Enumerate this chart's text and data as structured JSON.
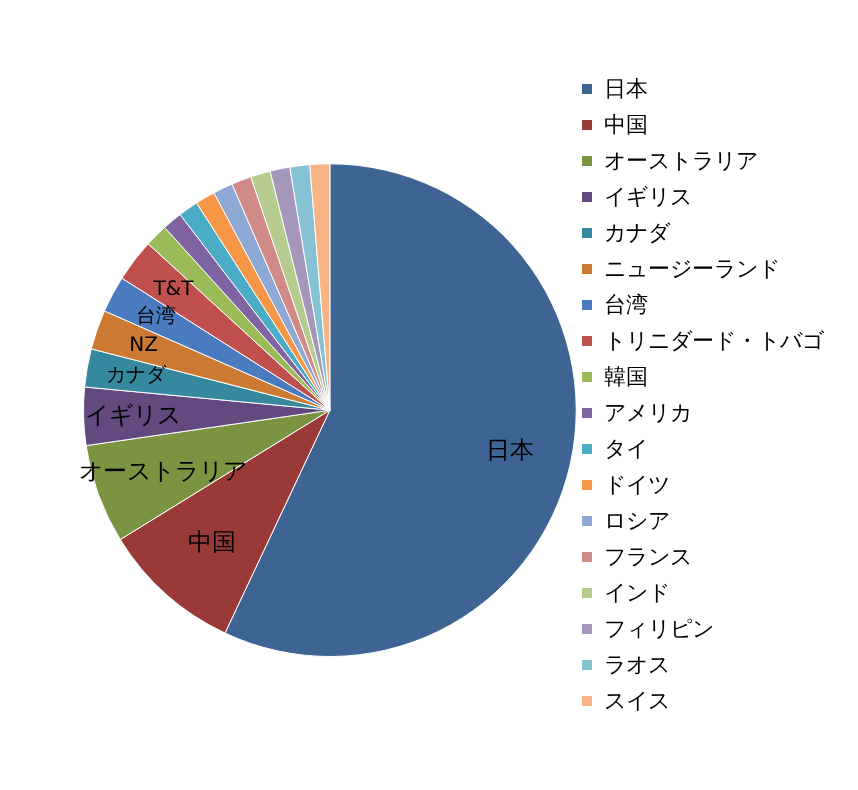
{
  "chart_data": {
    "type": "pie",
    "legend": "right",
    "categories": [
      "日本",
      "中国",
      "オーストラリア",
      "イギリス",
      "カナダ",
      "ニュージーランド",
      "台湾",
      "トリニダード・トバゴ",
      "韓国",
      "アメリカ",
      "タイ",
      "ドイツ",
      "ロシア",
      "フランス",
      "インド",
      "フィリピン",
      "ラオス",
      "スイス"
    ],
    "values": [
      57,
      9.2,
      6.5,
      3.8,
      2.5,
      2.6,
      2.4,
      2.8,
      1.5,
      1.3,
      1.3,
      1.3,
      1.3,
      1.3,
      1.3,
      1.3,
      1.3,
      1.3
    ],
    "value_labels": [
      "日本",
      "中国",
      "オーストラリア",
      "イギリス",
      "カナダ",
      "NZ",
      "台湾",
      "T&T",
      null,
      null,
      null,
      null,
      null,
      null,
      null,
      null,
      null,
      null
    ],
    "colors": [
      "#3e6494",
      "#9a3a38",
      "#7b9441",
      "#63497f",
      "#35889e",
      "#cc7a33",
      "#4a7bbf",
      "#c0504d",
      "#9bbb59",
      "#8064a2",
      "#4bacc6",
      "#f79646",
      "#8ea9d4",
      "#d08a88",
      "#b5cc8e",
      "#a497bb",
      "#86c1d4",
      "#f8b485"
    ]
  }
}
